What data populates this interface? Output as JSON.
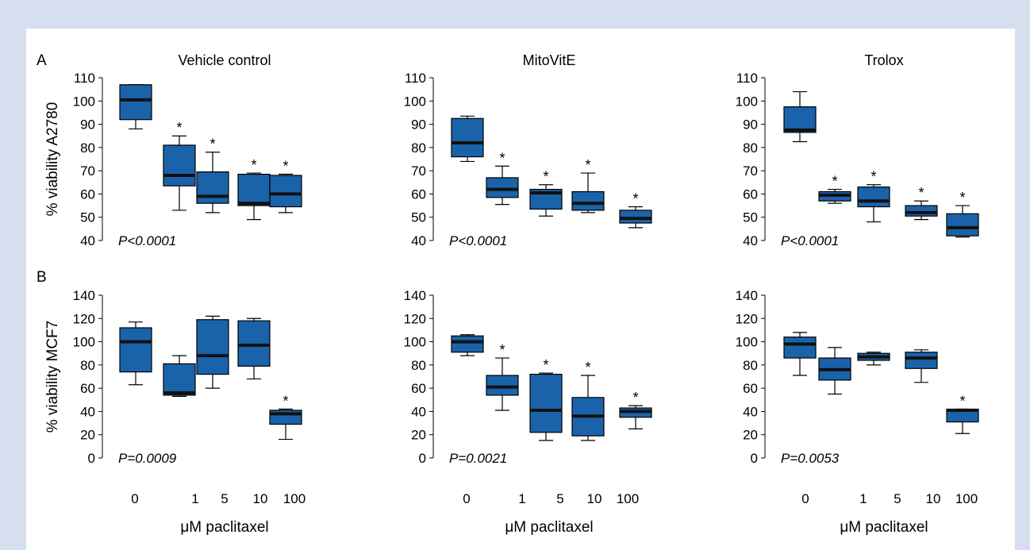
{
  "figure": {
    "row_letters": [
      "A",
      "B"
    ],
    "ylabels": [
      "% viability A2780",
      "% viability MCF7"
    ],
    "xlabel": "μM paclitaxel",
    "x_tick_labels": [
      "0",
      "1",
      "5",
      "10",
      "100"
    ]
  },
  "colors": {
    "box_fill": "#1a63aa",
    "median": "#111111",
    "background": "#d6dff0"
  },
  "chart_data": [
    {
      "type": "box",
      "row": "A",
      "title": "Vehicle control",
      "ylabel": "% viability A2780",
      "xlabel": "",
      "ylim": [
        40,
        110
      ],
      "yticks": [
        40,
        50,
        60,
        70,
        80,
        90,
        100,
        110
      ],
      "categories": [
        "0",
        "1",
        "5",
        "10",
        "100"
      ],
      "boxes": [
        {
          "min": 88,
          "q1": 92,
          "median": 100.5,
          "q3": 107,
          "max": 107,
          "significant": false
        },
        {
          "min": 53,
          "q1": 63.5,
          "median": 68,
          "q3": 81,
          "max": 85,
          "significant": true
        },
        {
          "min": 52,
          "q1": 56,
          "median": 59,
          "q3": 69.5,
          "max": 78,
          "significant": true
        },
        {
          "min": 49,
          "q1": 55,
          "median": 56,
          "q3": 68.5,
          "max": 69,
          "significant": true
        },
        {
          "min": 52,
          "q1": 54.5,
          "median": 60,
          "q3": 68,
          "max": 68.5,
          "significant": true
        }
      ],
      "p_value": "P<0.0001"
    },
    {
      "type": "box",
      "row": "A",
      "title": "MitoVitE",
      "ylabel": "",
      "xlabel": "",
      "ylim": [
        40,
        110
      ],
      "yticks": [
        40,
        50,
        60,
        70,
        80,
        90,
        100,
        110
      ],
      "categories": [
        "0",
        "1",
        "5",
        "10",
        "100"
      ],
      "boxes": [
        {
          "min": 74,
          "q1": 76,
          "median": 82,
          "q3": 92.5,
          "max": 93.5,
          "significant": false
        },
        {
          "min": 55.5,
          "q1": 58.5,
          "median": 62,
          "q3": 67,
          "max": 72,
          "significant": true
        },
        {
          "min": 50.5,
          "q1": 53.5,
          "median": 60.5,
          "q3": 62,
          "max": 64,
          "significant": true
        },
        {
          "min": 52,
          "q1": 53,
          "median": 56,
          "q3": 61,
          "max": 69,
          "significant": true
        },
        {
          "min": 45.5,
          "q1": 47.5,
          "median": 49.5,
          "q3": 53,
          "max": 54.5,
          "significant": true
        }
      ],
      "p_value": "P<0.0001"
    },
    {
      "type": "box",
      "row": "A",
      "title": "Trolox",
      "ylabel": "",
      "xlabel": "",
      "ylim": [
        40,
        110
      ],
      "yticks": [
        40,
        50,
        60,
        70,
        80,
        90,
        100,
        110
      ],
      "categories": [
        "0",
        "1",
        "5",
        "10",
        "100"
      ],
      "boxes": [
        {
          "min": 82.5,
          "q1": 86.5,
          "median": 87.5,
          "q3": 97.5,
          "max": 104,
          "significant": false
        },
        {
          "min": 56,
          "q1": 57,
          "median": 59.5,
          "q3": 61,
          "max": 62,
          "significant": true
        },
        {
          "min": 48,
          "q1": 54.5,
          "median": 57,
          "q3": 63,
          "max": 64,
          "significant": true
        },
        {
          "min": 49,
          "q1": 50.5,
          "median": 52,
          "q3": 55,
          "max": 57,
          "significant": true
        },
        {
          "min": 41.5,
          "q1": 42,
          "median": 45.5,
          "q3": 51.5,
          "max": 55,
          "significant": true
        }
      ],
      "p_value": "P<0.0001"
    },
    {
      "type": "box",
      "row": "B",
      "title": "",
      "ylabel": "% viability MCF7",
      "xlabel": "μM paclitaxel",
      "ylim": [
        0,
        140
      ],
      "yticks": [
        0,
        20,
        40,
        60,
        80,
        100,
        120,
        140
      ],
      "categories": [
        "0",
        "1",
        "5",
        "10",
        "100"
      ],
      "boxes": [
        {
          "min": 63,
          "q1": 74,
          "median": 100,
          "q3": 112,
          "max": 117,
          "significant": false
        },
        {
          "min": 53,
          "q1": 54,
          "median": 56,
          "q3": 81,
          "max": 88,
          "significant": false
        },
        {
          "min": 60,
          "q1": 72,
          "median": 88,
          "q3": 119,
          "max": 122,
          "significant": false
        },
        {
          "min": 68,
          "q1": 79,
          "median": 97,
          "q3": 118,
          "max": 120,
          "significant": false
        },
        {
          "min": 16,
          "q1": 29,
          "median": 38,
          "q3": 41,
          "max": 42,
          "significant": true
        }
      ],
      "p_value": "P=0.0009"
    },
    {
      "type": "box",
      "row": "B",
      "title": "",
      "ylabel": "",
      "xlabel": "μM paclitaxel",
      "ylim": [
        0,
        140
      ],
      "yticks": [
        0,
        20,
        40,
        60,
        80,
        100,
        120,
        140
      ],
      "categories": [
        "0",
        "1",
        "5",
        "10",
        "100"
      ],
      "boxes": [
        {
          "min": 88,
          "q1": 91,
          "median": 100,
          "q3": 105,
          "max": 106,
          "significant": false
        },
        {
          "min": 41,
          "q1": 54,
          "median": 61,
          "q3": 71,
          "max": 86,
          "significant": true
        },
        {
          "min": 15,
          "q1": 22,
          "median": 41,
          "q3": 72,
          "max": 73,
          "significant": true
        },
        {
          "min": 15,
          "q1": 19,
          "median": 36,
          "q3": 52,
          "max": 71,
          "significant": true
        },
        {
          "min": 25,
          "q1": 35,
          "median": 40,
          "q3": 43,
          "max": 45,
          "significant": true
        }
      ],
      "p_value": "P=0.0021"
    },
    {
      "type": "box",
      "row": "B",
      "title": "",
      "ylabel": "",
      "xlabel": "μM paclitaxel",
      "ylim": [
        0,
        140
      ],
      "yticks": [
        0,
        20,
        40,
        60,
        80,
        100,
        120,
        140
      ],
      "categories": [
        "0",
        "1",
        "5",
        "10",
        "100"
      ],
      "boxes": [
        {
          "min": 71,
          "q1": 86,
          "median": 98,
          "q3": 104,
          "max": 108,
          "significant": false
        },
        {
          "min": 55,
          "q1": 67,
          "median": 76,
          "q3": 86,
          "max": 95,
          "significant": false
        },
        {
          "min": 80,
          "q1": 84,
          "median": 87,
          "q3": 90,
          "max": 91,
          "significant": false
        },
        {
          "min": 65,
          "q1": 77,
          "median": 86,
          "q3": 91,
          "max": 93,
          "significant": false
        },
        {
          "min": 21,
          "q1": 31,
          "median": 41,
          "q3": 42,
          "max": 42,
          "significant": true
        }
      ],
      "p_value": "P=0.0053"
    }
  ]
}
